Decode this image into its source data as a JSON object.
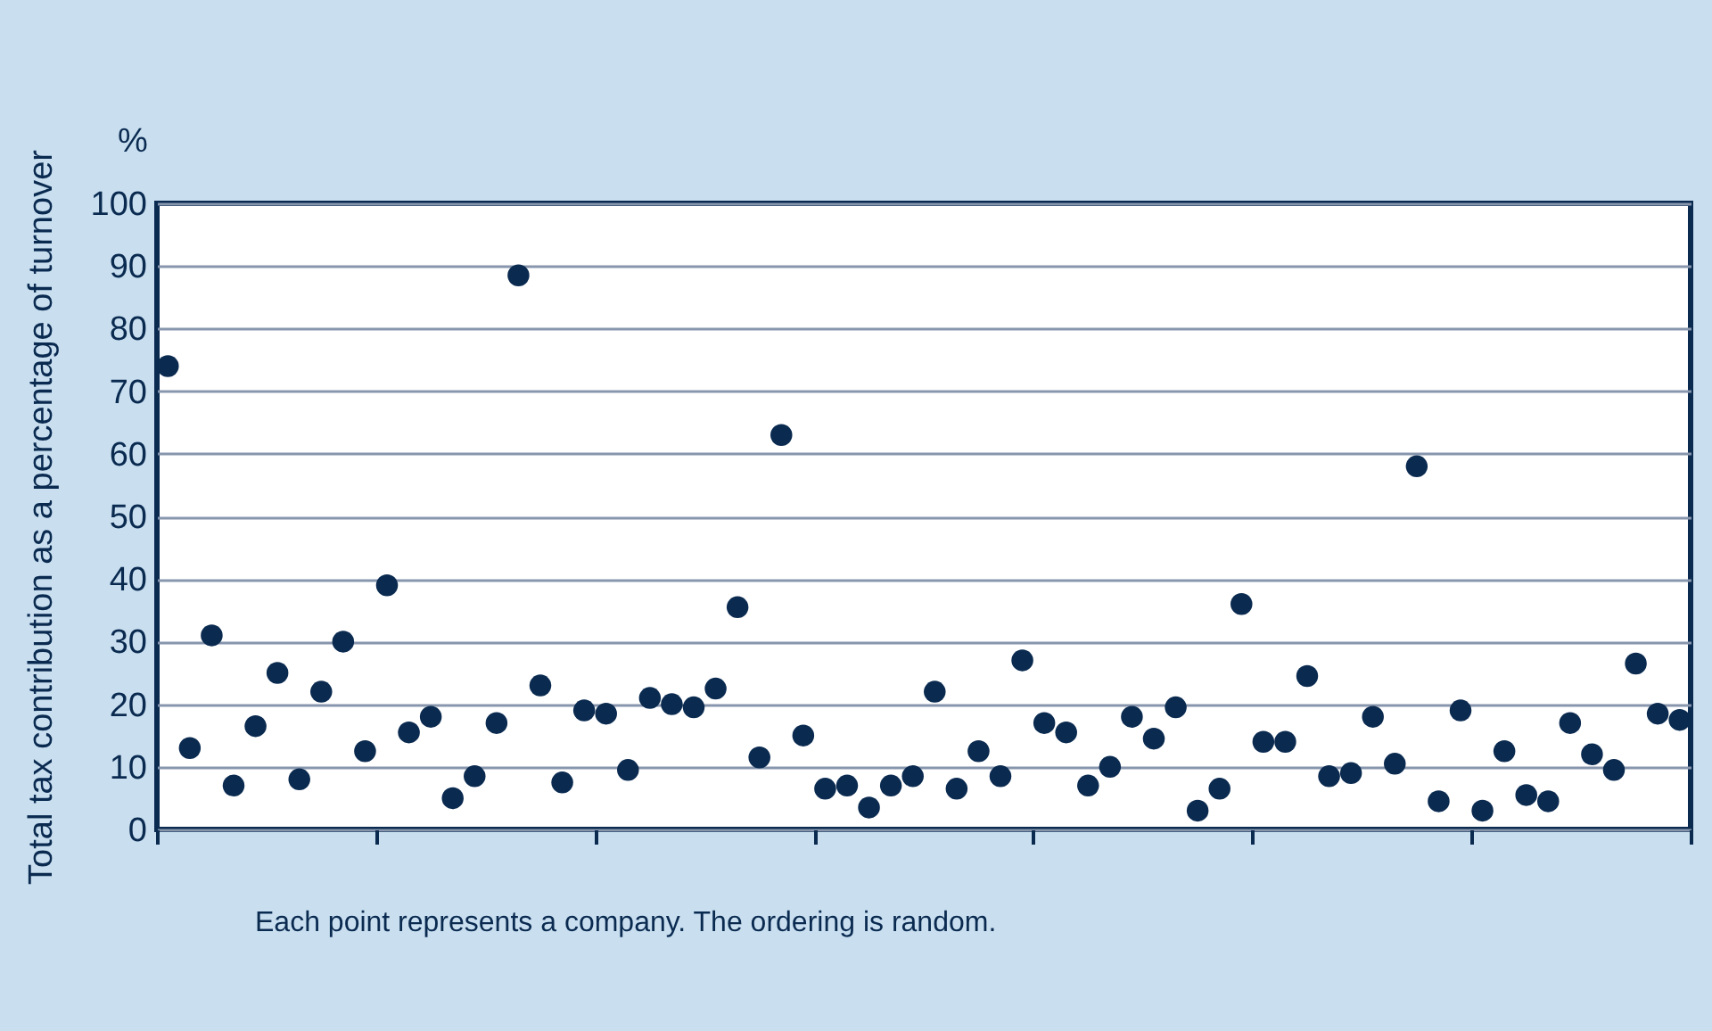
{
  "chart_data": {
    "type": "scatter",
    "ylabel": "Total tax contribution as a percentage of turnover",
    "annotations": [
      "%",
      "Each point represents a company. The ordering is random."
    ],
    "categories": [
      null,
      null,
      null,
      null,
      null,
      null,
      null,
      null,
      null,
      null,
      null,
      null,
      null,
      null,
      null,
      null,
      null,
      null,
      null,
      null,
      null,
      null,
      null,
      null,
      null,
      null,
      null,
      null,
      null,
      null,
      null,
      null,
      null,
      null,
      null,
      null,
      null,
      null,
      null,
      null,
      null,
      null,
      null,
      null,
      null,
      null,
      null,
      null,
      null,
      null,
      null,
      null,
      null,
      null,
      null,
      null,
      null,
      null,
      null,
      null,
      null,
      null,
      null,
      null,
      null,
      null,
      null,
      null,
      null,
      null
    ],
    "series": [
      {
        "color": "#0a2a50",
        "values": [
          74,
          13,
          31,
          7,
          16.5,
          25,
          8,
          22,
          30,
          12.5,
          39,
          15.5,
          18,
          5,
          8.5,
          17,
          88.5,
          23,
          7.5,
          19,
          18.5,
          9.5,
          21,
          20,
          19.5,
          22.5,
          35.5,
          11.5,
          63,
          15,
          6.5,
          7,
          3.5,
          7,
          8.5,
          22,
          6.5,
          12.5,
          8.5,
          27,
          17,
          15.5,
          7,
          10,
          18,
          14.5,
          19.5,
          3,
          6.5,
          36,
          14,
          14,
          24.5,
          8.5,
          9,
          18,
          10.5,
          58,
          4.5,
          19,
          3,
          12.5,
          5.5,
          4.5,
          17,
          12,
          9.5,
          26.5,
          18.5,
          17.5
        ]
      }
    ],
    "ylim": [
      0,
      100
    ],
    "yticks": [
      0,
      10,
      20,
      30,
      40,
      50,
      60,
      70,
      80,
      90,
      100
    ],
    "grid": "y",
    "marker": "circle"
  }
}
